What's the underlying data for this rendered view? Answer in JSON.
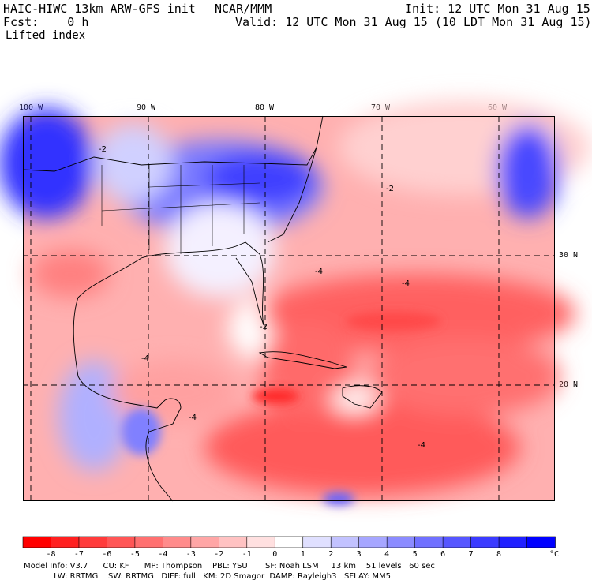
{
  "header": {
    "model": "HAIC-HIWC 13km ARW-GFS init",
    "org": "NCAR/MMM",
    "init": "Init: 12 UTC Mon 31 Aug 15",
    "fcst": "Fcst:    0 h",
    "valid": "Valid: 12 UTC Mon 31 Aug 15 (10 LDT Mon 31 Aug 15)",
    "field": "Lifted index"
  },
  "map": {
    "lon_labels": [
      "100 W",
      "90 W",
      "80 W",
      "70 W",
      "60 W"
    ],
    "lat_labels": [
      "30 N",
      "20 N"
    ],
    "contour_label": "-4",
    "contour_label_2": "-2",
    "colors": {
      "strong_neg": "#ff2020",
      "neg": "#ff7a7a",
      "weak_neg": "#ffc0c0",
      "neutral": "#ffffff",
      "weak_pos": "#c8c8ff",
      "pos": "#6a6aff",
      "strong_pos": "#2828ff"
    }
  },
  "colorbar": {
    "labels": [
      "-8",
      "-7",
      "-6",
      "-5",
      "-4",
      "-3",
      "-2",
      "-1",
      "0",
      "1",
      "2",
      "3",
      "4",
      "5",
      "6",
      "7",
      "8"
    ],
    "unit": "°C",
    "colors": [
      "#ff0000",
      "#ff2020",
      "#ff3b3b",
      "#ff5656",
      "#ff7070",
      "#ff8b8b",
      "#ffa6a6",
      "#ffc2c2",
      "#ffe0e0",
      "#ffffff",
      "#e0e0ff",
      "#c2c2ff",
      "#a6a6ff",
      "#8b8bff",
      "#7070ff",
      "#5656ff",
      "#3b3bff",
      "#2020ff",
      "#0000ff"
    ]
  },
  "footer": {
    "line1": "Model Info: V3.7      CU: KF      MP: Thompson    PBL: YSU       SF: Noah LSM     13 km    51 levels   60 sec",
    "line2": "            LW: RRTMG    SW: RRTMG   DIFF: full   KM: 2D Smagor  DAMP: Rayleigh3   SFLAY: MM5"
  }
}
